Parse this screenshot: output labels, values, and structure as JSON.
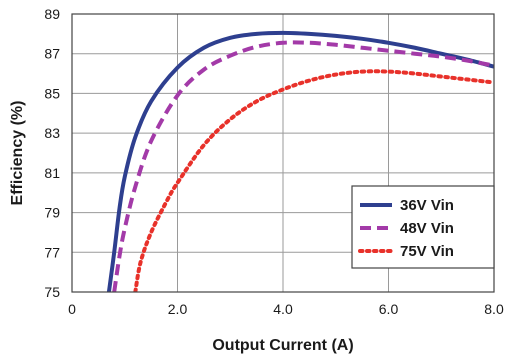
{
  "chart_data": {
    "type": "line",
    "xlabel": "Output Current (A)",
    "ylabel": "Efficiency (%)",
    "xlim": [
      0,
      8.0
    ],
    "ylim": [
      75,
      89
    ],
    "xticks": [
      0,
      2.0,
      4.0,
      6.0,
      8.0
    ],
    "xtick_labels": [
      "0",
      "2.0",
      "4.0",
      "6.0",
      "8.0"
    ],
    "yticks": [
      75,
      77,
      79,
      81,
      83,
      85,
      87,
      89
    ],
    "ytick_labels": [
      "75",
      "77",
      "79",
      "81",
      "83",
      "85",
      "87",
      "89"
    ],
    "grid": true,
    "legend_position": "bottom-right",
    "series": [
      {
        "name": "36V Vin",
        "color": "#2e3f8f",
        "style": "solid",
        "x": [
          0.7,
          0.8,
          0.9,
          1.0,
          1.2,
          1.5,
          2.0,
          2.5,
          3.0,
          3.5,
          4.0,
          4.5,
          5.0,
          5.5,
          6.0,
          6.5,
          7.0,
          7.5,
          8.0
        ],
        "y": [
          75.0,
          77.0,
          79.2,
          80.8,
          82.8,
          84.6,
          86.3,
          87.3,
          87.8,
          88.0,
          88.05,
          88.0,
          87.9,
          87.75,
          87.55,
          87.3,
          87.0,
          86.7,
          86.35
        ]
      },
      {
        "name": "48V Vin",
        "color": "#a33aa8",
        "style": "dashed",
        "x": [
          0.8,
          0.9,
          1.0,
          1.2,
          1.5,
          2.0,
          2.5,
          3.0,
          3.5,
          4.0,
          4.5,
          5.0,
          5.5,
          6.0,
          6.5,
          7.0,
          7.5,
          8.0
        ],
        "y": [
          75.0,
          76.8,
          78.2,
          80.3,
          82.6,
          84.9,
          86.2,
          86.9,
          87.35,
          87.55,
          87.55,
          87.45,
          87.3,
          87.15,
          87.0,
          86.85,
          86.65,
          86.4
        ]
      },
      {
        "name": "75V Vin",
        "color": "#e8312a",
        "style": "dotted",
        "x": [
          1.2,
          1.3,
          1.5,
          1.8,
          2.0,
          2.5,
          3.0,
          3.5,
          4.0,
          4.5,
          5.0,
          5.5,
          6.0,
          6.5,
          7.0,
          7.5,
          8.0
        ],
        "y": [
          75.0,
          76.5,
          78.0,
          79.6,
          80.5,
          82.4,
          83.7,
          84.6,
          85.2,
          85.65,
          85.95,
          86.1,
          86.1,
          86.0,
          85.85,
          85.7,
          85.55
        ]
      }
    ]
  }
}
